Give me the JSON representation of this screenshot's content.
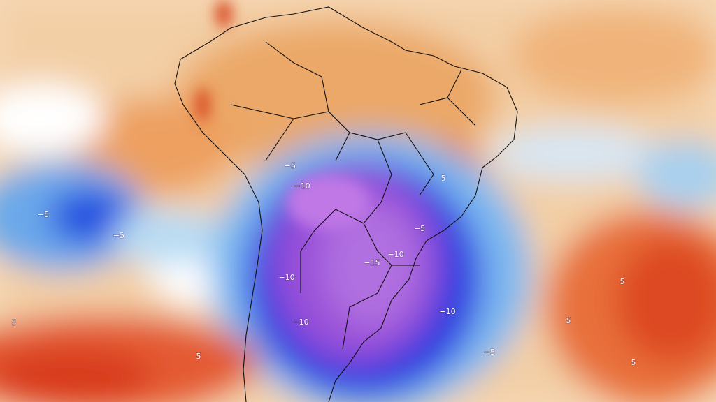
{
  "map": {
    "contour_labels": [
      "−5",
      "−10",
      "5",
      "−5",
      "−5",
      "−5",
      "−10",
      "−15",
      "−10",
      "−10",
      "−10",
      "5",
      "−5",
      "5",
      "5",
      "5",
      "5"
    ]
  }
}
